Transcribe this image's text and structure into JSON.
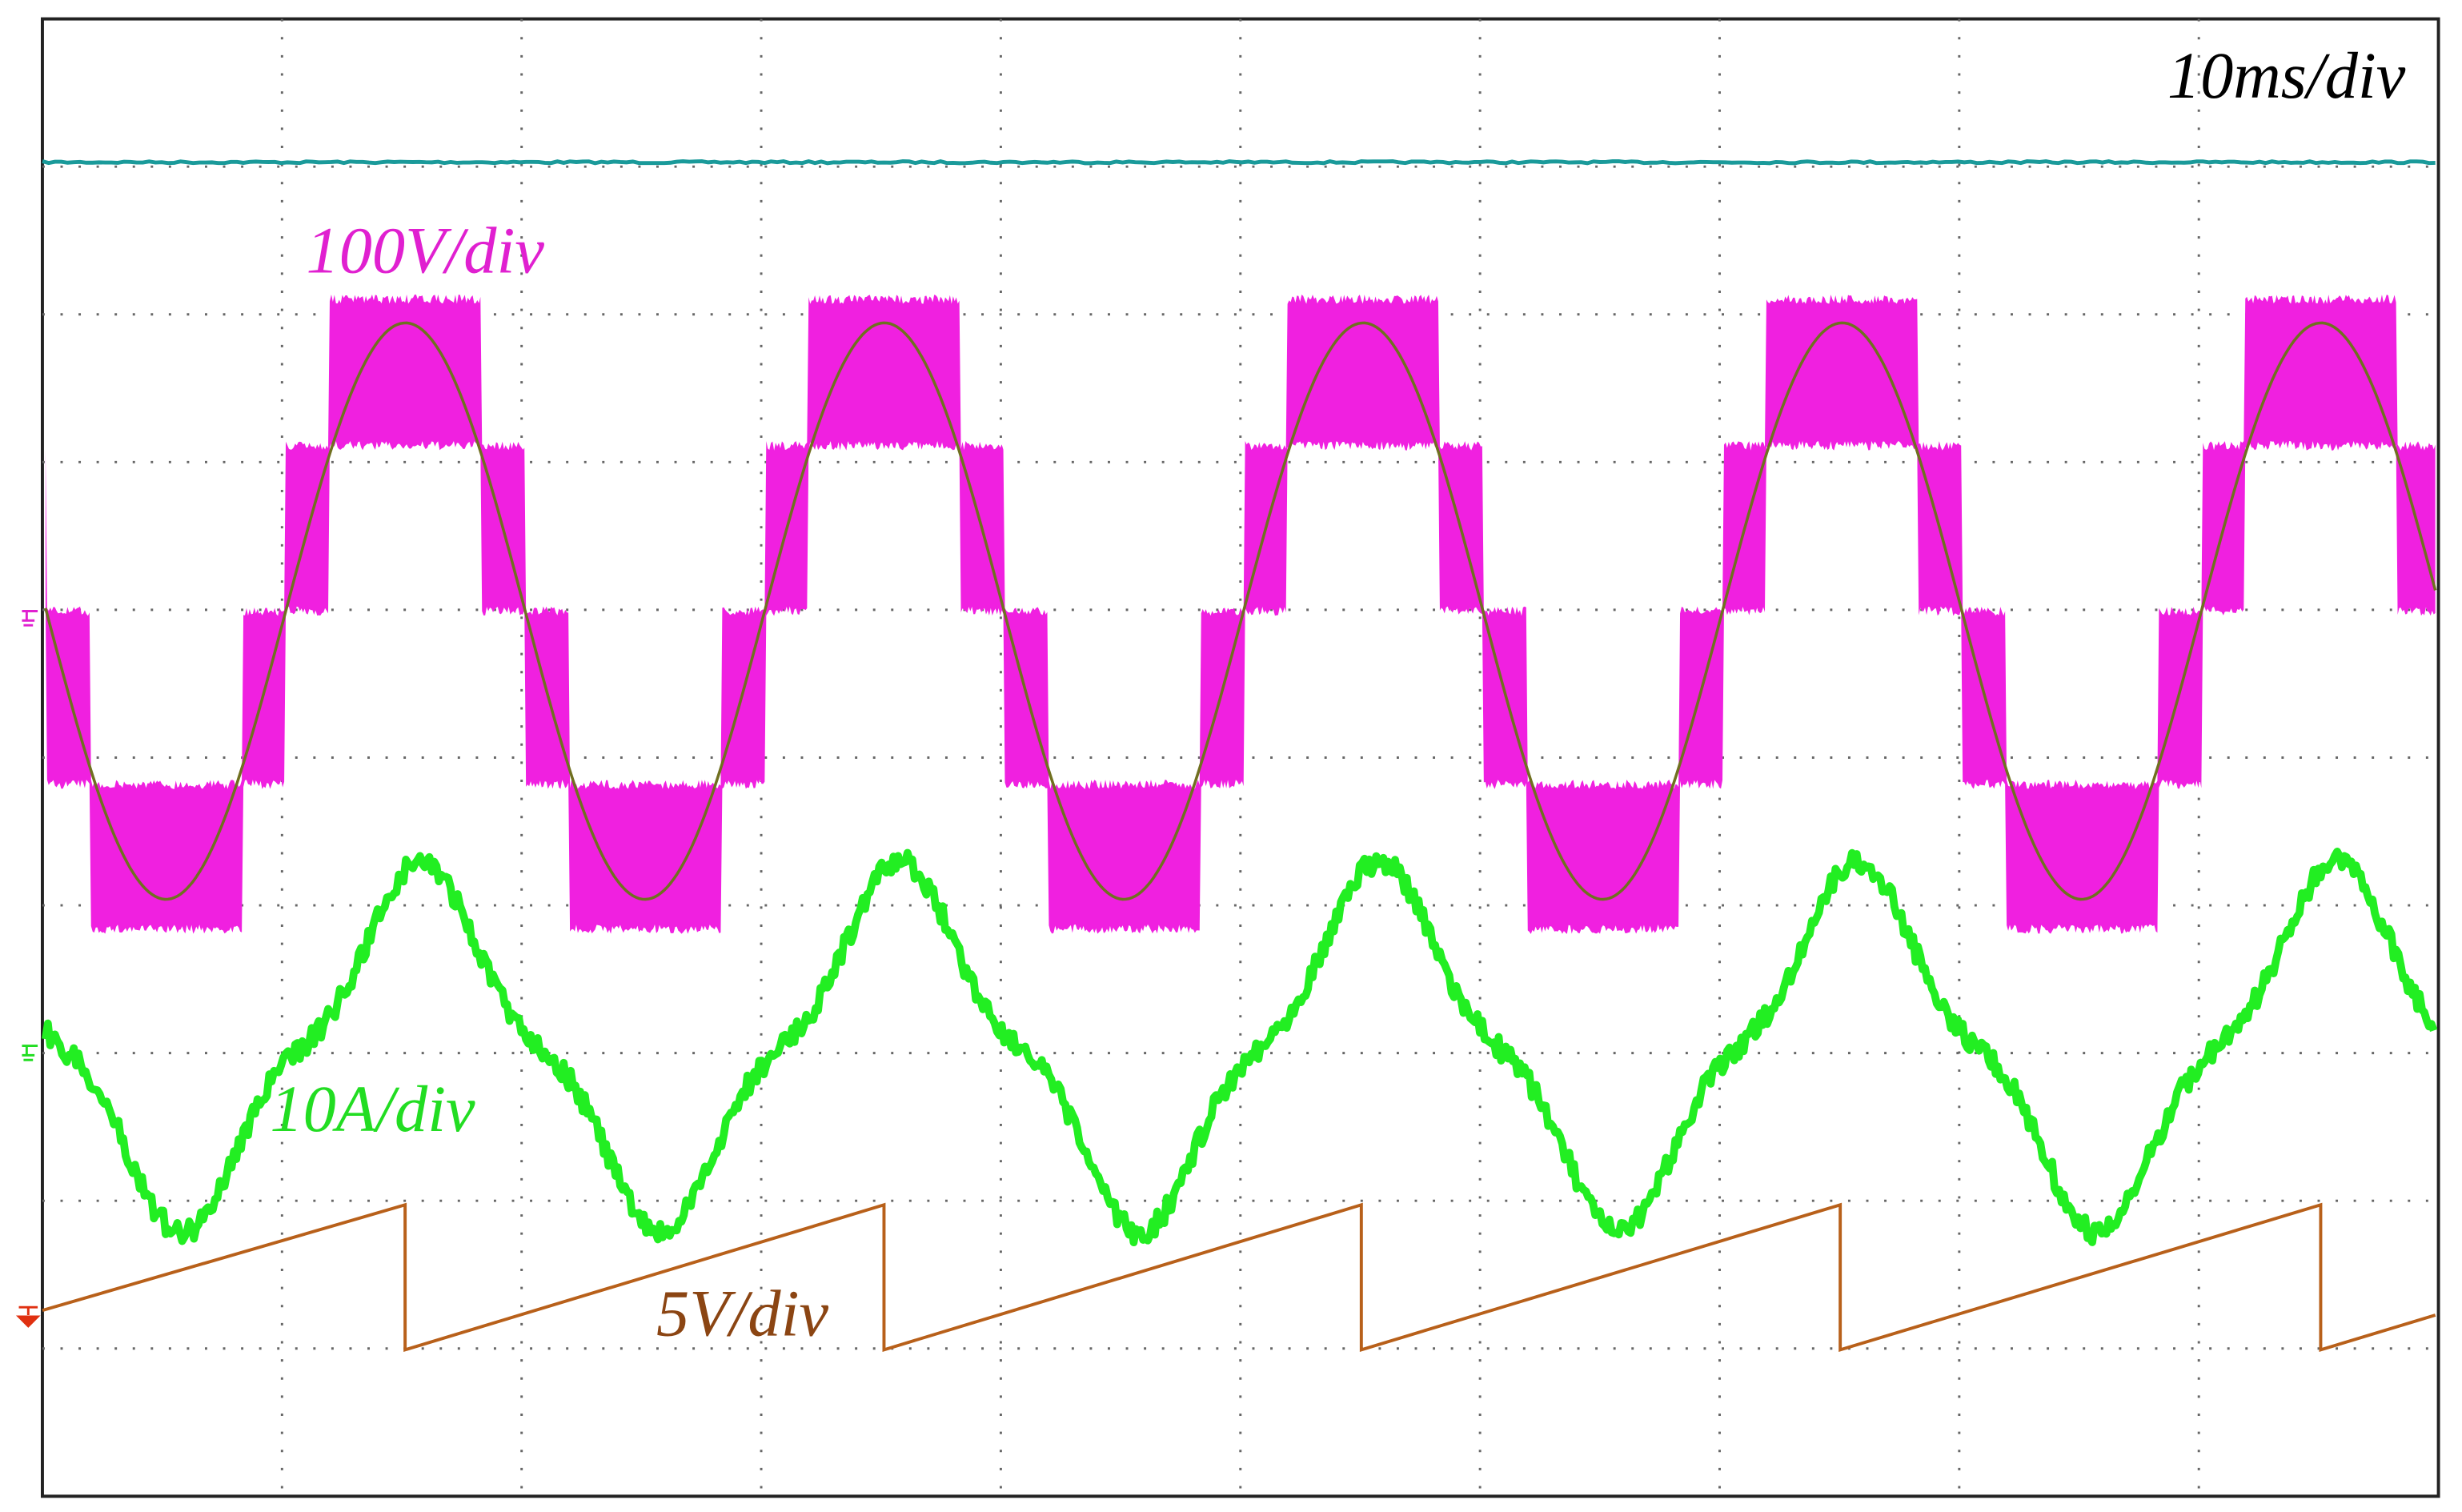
{
  "labels": {
    "time_scale": "10ms/div",
    "ch_voltage": "100V/div",
    "ch_current": "10A/div",
    "ch_carrier": "5V/div"
  }
}
